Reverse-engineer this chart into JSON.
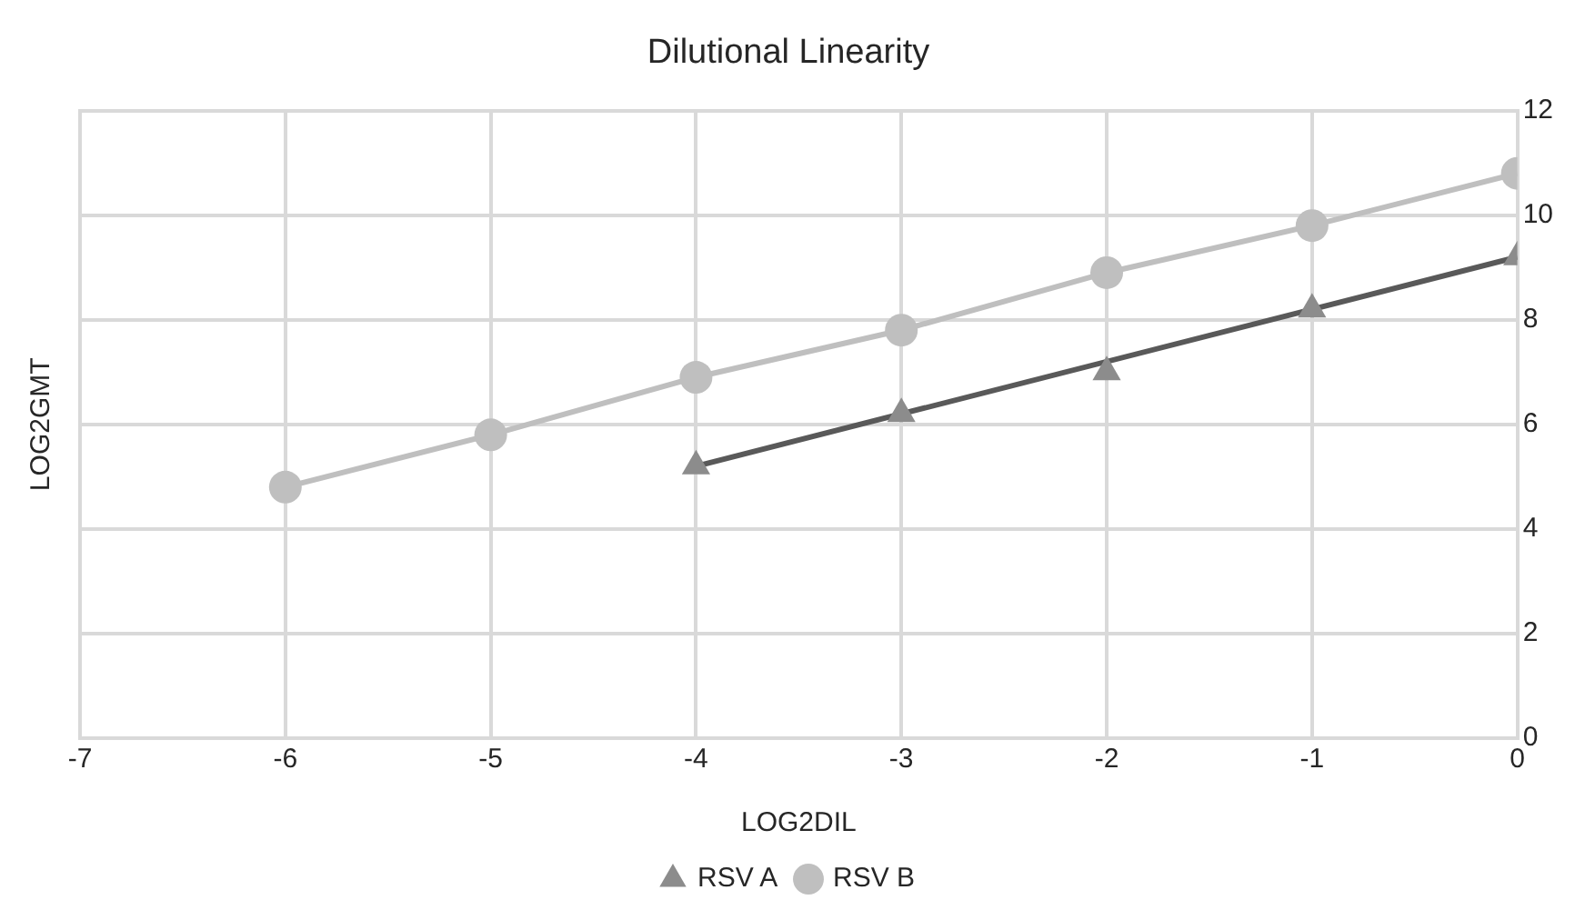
{
  "chart_data": {
    "type": "line",
    "title": "Dilutional Linearity",
    "xlabel": "LOG2DIL",
    "ylabel": "LOG2GMT",
    "xlim": [
      -7,
      0
    ],
    "xticks": [
      -7,
      -6,
      -5,
      -4,
      -3,
      -2,
      -1,
      0
    ],
    "ylim": [
      0,
      12
    ],
    "yticks": [
      0,
      2,
      4,
      6,
      8,
      10,
      12
    ],
    "grid": true,
    "legend": "bottom",
    "series": [
      {
        "name": "RSV A",
        "type": "scatter",
        "marker": "triangle",
        "color": "#8c8c8c",
        "x": [
          -4,
          -3,
          -2,
          -1,
          0
        ],
        "values": [
          5.2,
          6.2,
          7.0,
          8.2,
          9.2
        ]
      },
      {
        "type": "line",
        "marker": "none",
        "color": "#595959",
        "x": [
          -4,
          0
        ],
        "values": [
          5.2,
          9.2
        ]
      },
      {
        "name": "RSV B",
        "type": "line",
        "marker": "circle",
        "color": "#bfbfbf",
        "x": [
          -6,
          -5,
          -4,
          -3,
          -2,
          -1,
          0
        ],
        "values": [
          4.8,
          5.8,
          6.9,
          7.8,
          8.9,
          9.8,
          10.8
        ]
      }
    ]
  }
}
